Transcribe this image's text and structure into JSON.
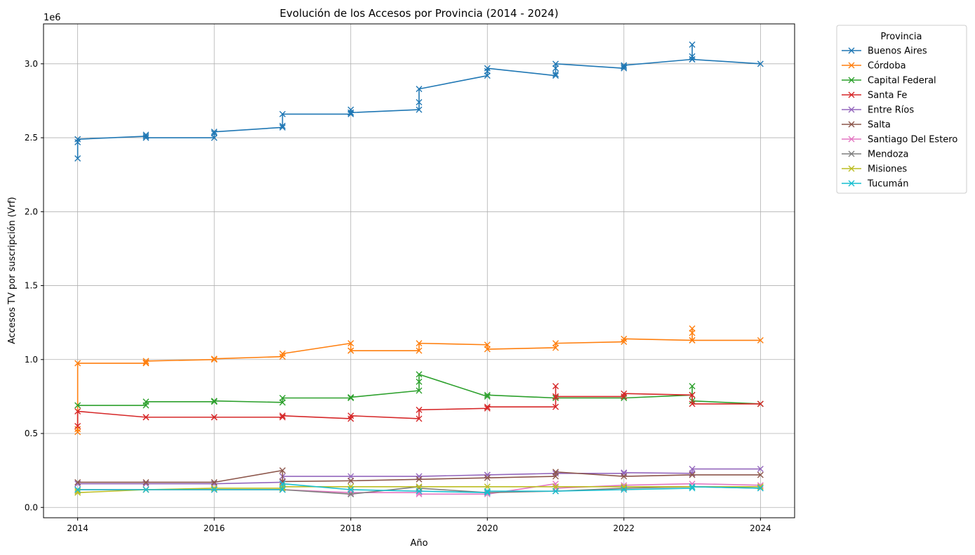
{
  "chart_data": {
    "type": "line",
    "title": "Evolución de los Accesos por Provincia (2014 - 2024)",
    "xlabel": "Año",
    "ylabel": "Accesos TV por suscripción (Vrf)",
    "y_offset_label": "1e6",
    "xlim": [
      2013.5,
      2024.5
    ],
    "ylim": [
      -0.07,
      3.27
    ],
    "x_ticks": [
      2014,
      2016,
      2018,
      2020,
      2022,
      2024
    ],
    "x_tick_labels": [
      "2014",
      "2016",
      "2018",
      "2020",
      "2022",
      "2024"
    ],
    "y_ticks": [
      0.0,
      0.5,
      1.0,
      1.5,
      2.0,
      2.5,
      3.0
    ],
    "y_tick_labels": [
      "0.0",
      "0.5",
      "1.0",
      "1.5",
      "2.0",
      "2.5",
      "3.0"
    ],
    "grid": true,
    "legend_title": "Provincia",
    "legend_position": "outside-top-right",
    "marker": "x",
    "series": [
      {
        "name": "Buenos Aires",
        "color": "#1f77b4",
        "points": [
          [
            2014,
            2.36
          ],
          [
            2014,
            2.47
          ],
          [
            2014,
            2.49
          ],
          [
            2015,
            2.51
          ],
          [
            2015,
            2.52
          ],
          [
            2015,
            2.5
          ],
          [
            2016,
            2.5
          ],
          [
            2016,
            2.53
          ],
          [
            2016,
            2.54
          ],
          [
            2017,
            2.57
          ],
          [
            2017,
            2.58
          ],
          [
            2017,
            2.66
          ],
          [
            2018,
            2.66
          ],
          [
            2018,
            2.67
          ],
          [
            2018,
            2.69
          ],
          [
            2018,
            2.67
          ],
          [
            2019,
            2.69
          ],
          [
            2019,
            2.74
          ],
          [
            2019,
            2.83
          ],
          [
            2020,
            2.92
          ],
          [
            2020,
            2.95
          ],
          [
            2020,
            2.97
          ],
          [
            2021,
            2.92
          ],
          [
            2021,
            2.93
          ],
          [
            2021,
            2.97
          ],
          [
            2021,
            3.0
          ],
          [
            2022,
            2.97
          ],
          [
            2022,
            2.98
          ],
          [
            2022,
            2.99
          ],
          [
            2023,
            3.03
          ],
          [
            2023,
            3.05
          ],
          [
            2023,
            3.13
          ],
          [
            2023,
            3.03
          ],
          [
            2024,
            3.0
          ]
        ]
      },
      {
        "name": "Córdoba",
        "color": "#ff7f0e",
        "points": [
          [
            2014,
            0.51
          ],
          [
            2014,
            0.53
          ],
          [
            2014,
            0.975
          ],
          [
            2015,
            0.975
          ],
          [
            2015,
            0.98
          ],
          [
            2015,
            0.99
          ],
          [
            2016,
            1.0
          ],
          [
            2016,
            1.005
          ],
          [
            2017,
            1.02
          ],
          [
            2017,
            1.04
          ],
          [
            2018,
            1.11
          ],
          [
            2018,
            1.06
          ],
          [
            2018,
            1.06
          ],
          [
            2019,
            1.06
          ],
          [
            2019,
            1.11
          ],
          [
            2020,
            1.1
          ],
          [
            2020,
            1.07
          ],
          [
            2021,
            1.08
          ],
          [
            2021,
            1.11
          ],
          [
            2022,
            1.12
          ],
          [
            2022,
            1.14
          ],
          [
            2023,
            1.13
          ],
          [
            2023,
            1.18
          ],
          [
            2023,
            1.21
          ],
          [
            2023,
            1.13
          ],
          [
            2024,
            1.13
          ]
        ]
      },
      {
        "name": "Capital Federal",
        "color": "#2ca02c",
        "points": [
          [
            2014,
            0.69
          ],
          [
            2015,
            0.69
          ],
          [
            2015,
            0.715
          ],
          [
            2016,
            0.715
          ],
          [
            2016,
            0.72
          ],
          [
            2017,
            0.71
          ],
          [
            2017,
            0.74
          ],
          [
            2018,
            0.74
          ],
          [
            2018,
            0.745
          ],
          [
            2019,
            0.79
          ],
          [
            2019,
            0.85
          ],
          [
            2019,
            0.9
          ],
          [
            2020,
            0.75
          ],
          [
            2020,
            0.76
          ],
          [
            2021,
            0.74
          ],
          [
            2022,
            0.74
          ],
          [
            2023,
            0.76
          ],
          [
            2023,
            0.82
          ],
          [
            2023,
            0.72
          ],
          [
            2024,
            0.7
          ]
        ]
      },
      {
        "name": "Santa Fe",
        "color": "#d62728",
        "points": [
          [
            2014,
            0.55
          ],
          [
            2014,
            0.65
          ],
          [
            2015,
            0.61
          ],
          [
            2015,
            0.61
          ],
          [
            2016,
            0.61
          ],
          [
            2016,
            0.61
          ],
          [
            2017,
            0.61
          ],
          [
            2017,
            0.62
          ],
          [
            2018,
            0.6
          ],
          [
            2018,
            0.62
          ],
          [
            2019,
            0.6
          ],
          [
            2019,
            0.66
          ],
          [
            2020,
            0.67
          ],
          [
            2020,
            0.68
          ],
          [
            2021,
            0.68
          ],
          [
            2021,
            0.75
          ],
          [
            2021,
            0.82
          ],
          [
            2021,
            0.75
          ],
          [
            2022,
            0.75
          ],
          [
            2022,
            0.77
          ],
          [
            2023,
            0.76
          ],
          [
            2023,
            0.7
          ],
          [
            2024,
            0.7
          ]
        ]
      },
      {
        "name": "Entre Ríos",
        "color": "#9467bd",
        "points": [
          [
            2014,
            0.16
          ],
          [
            2015,
            0.16
          ],
          [
            2016,
            0.16
          ],
          [
            2017,
            0.17
          ],
          [
            2017,
            0.21
          ],
          [
            2018,
            0.21
          ],
          [
            2019,
            0.21
          ],
          [
            2019,
            0.21
          ],
          [
            2020,
            0.22
          ],
          [
            2020,
            0.22
          ],
          [
            2021,
            0.23
          ],
          [
            2022,
            0.23
          ],
          [
            2022,
            0.235
          ],
          [
            2023,
            0.23
          ],
          [
            2023,
            0.26
          ],
          [
            2024,
            0.26
          ]
        ]
      },
      {
        "name": "Salta",
        "color": "#8c564b",
        "points": [
          [
            2014,
            0.17
          ],
          [
            2015,
            0.17
          ],
          [
            2016,
            0.17
          ],
          [
            2017,
            0.25
          ],
          [
            2017,
            0.175
          ],
          [
            2018,
            0.18
          ],
          [
            2019,
            0.19
          ],
          [
            2020,
            0.2
          ],
          [
            2021,
            0.21
          ],
          [
            2021,
            0.24
          ],
          [
            2022,
            0.21
          ],
          [
            2023,
            0.22
          ],
          [
            2024,
            0.22
          ]
        ]
      },
      {
        "name": "Santiago Del Estero",
        "color": "#e377c2",
        "points": [
          [
            2014,
            0.12
          ],
          [
            2015,
            0.12
          ],
          [
            2016,
            0.12
          ],
          [
            2017,
            0.12
          ],
          [
            2018,
            0.1
          ],
          [
            2019,
            0.1
          ],
          [
            2019,
            0.09
          ],
          [
            2020,
            0.09
          ],
          [
            2021,
            0.16
          ],
          [
            2021,
            0.13
          ],
          [
            2022,
            0.15
          ],
          [
            2023,
            0.16
          ],
          [
            2024,
            0.15
          ]
        ]
      },
      {
        "name": "Mendoza",
        "color": "#7f7f7f",
        "points": [
          [
            2014,
            0.12
          ],
          [
            2015,
            0.12
          ],
          [
            2016,
            0.12
          ],
          [
            2017,
            0.12
          ],
          [
            2018,
            0.09
          ],
          [
            2018,
            0.09
          ],
          [
            2019,
            0.14
          ],
          [
            2019,
            0.13
          ],
          [
            2020,
            0.1
          ],
          [
            2021,
            0.11
          ],
          [
            2022,
            0.13
          ],
          [
            2023,
            0.14
          ],
          [
            2024,
            0.13
          ]
        ]
      },
      {
        "name": "Misiones",
        "color": "#bcbd22",
        "points": [
          [
            2014,
            0.11
          ],
          [
            2014,
            0.1
          ],
          [
            2015,
            0.12
          ],
          [
            2016,
            0.13
          ],
          [
            2017,
            0.13
          ],
          [
            2017,
            0.14
          ],
          [
            2018,
            0.14
          ],
          [
            2019,
            0.14
          ],
          [
            2020,
            0.14
          ],
          [
            2021,
            0.14
          ],
          [
            2022,
            0.14
          ],
          [
            2023,
            0.14
          ],
          [
            2024,
            0.14
          ]
        ]
      },
      {
        "name": "Tucumán",
        "color": "#17becf",
        "points": [
          [
            2014,
            0.12
          ],
          [
            2015,
            0.12
          ],
          [
            2016,
            0.12
          ],
          [
            2017,
            0.12
          ],
          [
            2017,
            0.16
          ],
          [
            2018,
            0.12
          ],
          [
            2019,
            0.11
          ],
          [
            2020,
            0.1
          ],
          [
            2020,
            0.11
          ],
          [
            2021,
            0.11
          ],
          [
            2022,
            0.12
          ],
          [
            2023,
            0.13
          ],
          [
            2023,
            0.14
          ],
          [
            2024,
            0.13
          ]
        ]
      }
    ]
  }
}
